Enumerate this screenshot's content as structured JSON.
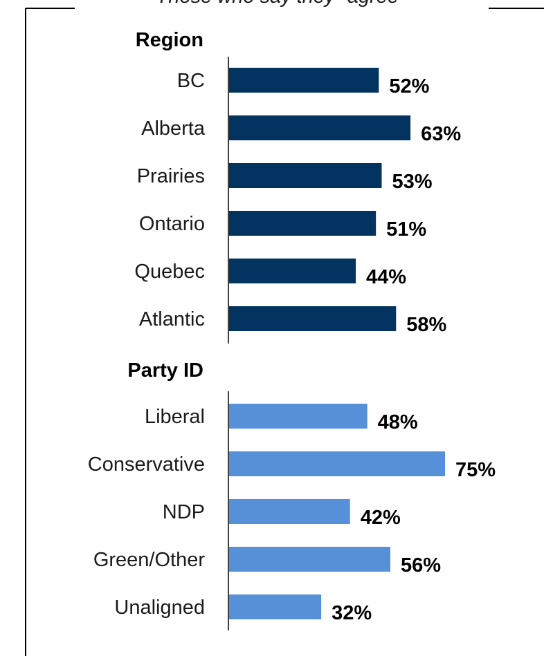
{
  "chart_data": {
    "type": "bar",
    "orientation": "horizontal",
    "subtitle": "Those who say they \"agree\"",
    "xlim": [
      0,
      100
    ],
    "grid": false,
    "groups": [
      {
        "name": "Region",
        "color": "#03345f",
        "categories": [
          "BC",
          "Alberta",
          "Prairies",
          "Ontario",
          "Quebec",
          "Atlantic"
        ],
        "values": [
          52,
          63,
          53,
          51,
          44,
          58
        ],
        "labels": [
          "52%",
          "63%",
          "53%",
          "51%",
          "44%",
          "58%"
        ]
      },
      {
        "name": "Party ID",
        "color": "#5590d8",
        "categories": [
          "Liberal",
          "Conservative",
          "NDP",
          "Green/Other",
          "Unaligned"
        ],
        "values": [
          48,
          75,
          42,
          56,
          32
        ],
        "labels": [
          "48%",
          "75%",
          "42%",
          "56%",
          "32%"
        ]
      }
    ]
  }
}
